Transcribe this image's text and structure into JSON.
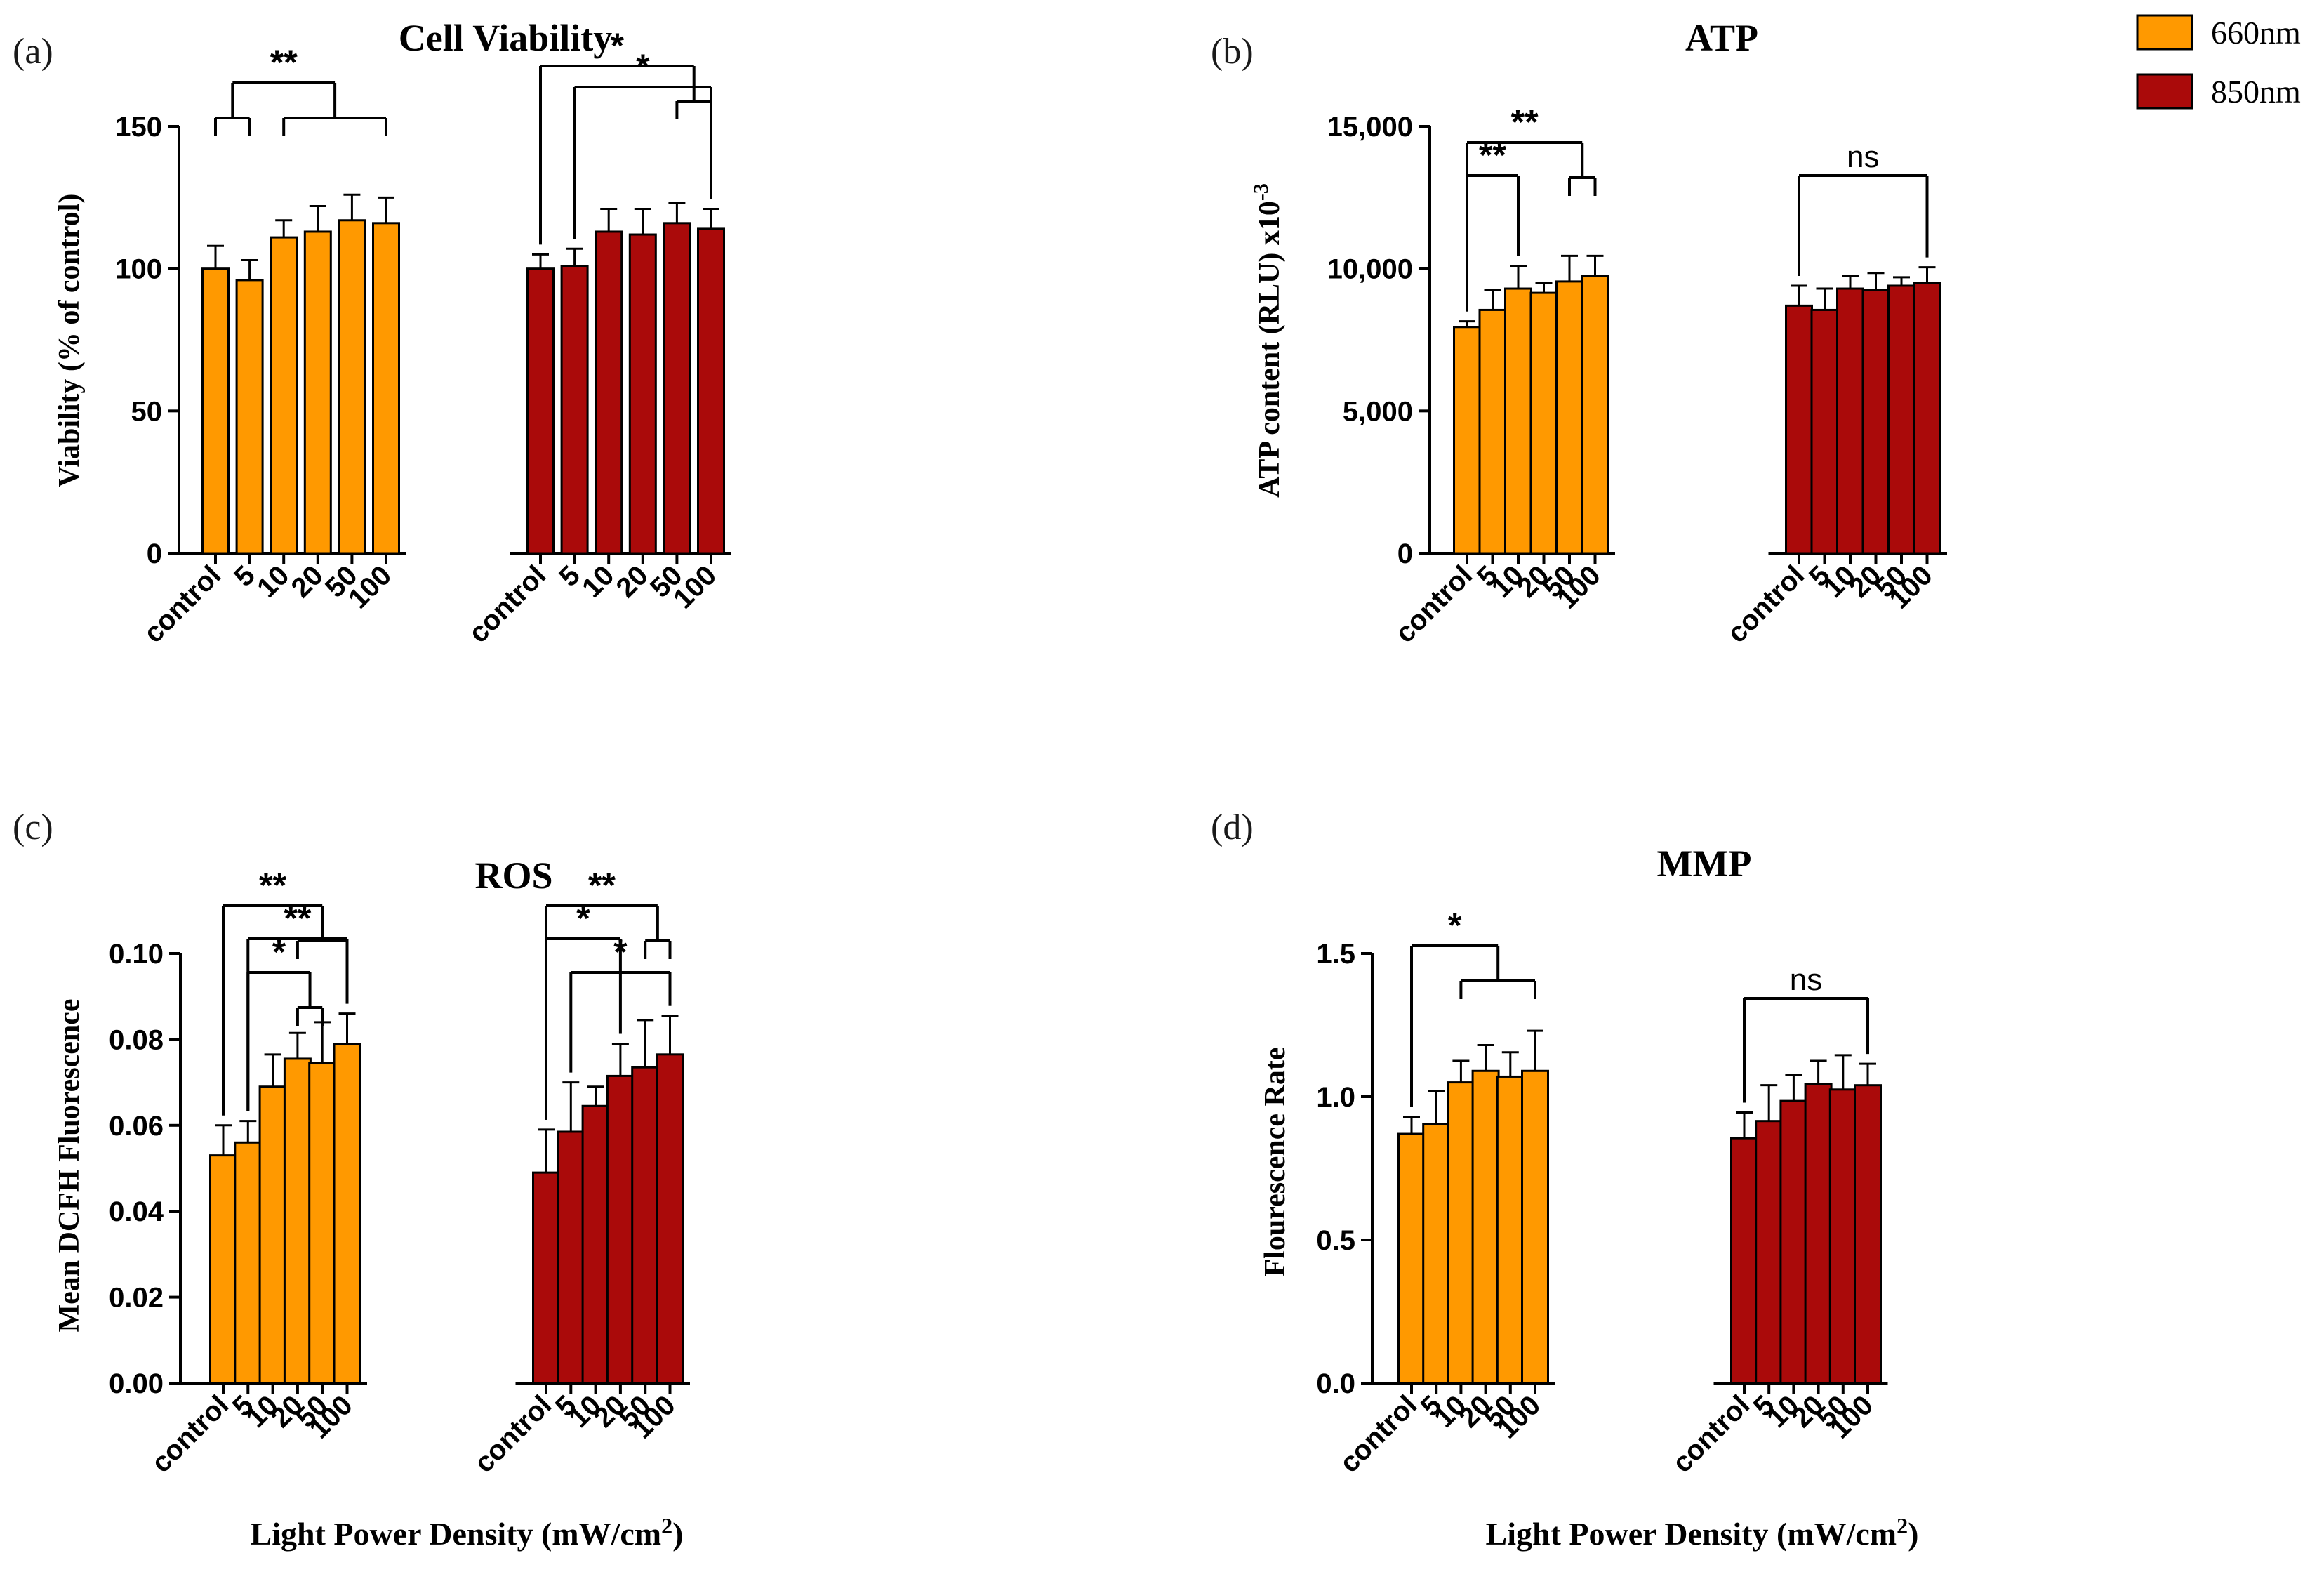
{
  "x_axis_label": "Light Power Density (mW/cm",
  "x_axis_label_sup": "2",
  "x_axis_label_end": ")",
  "legend": [
    {
      "label": "660nm",
      "color": "#FF9900"
    },
    {
      "label": "850nm",
      "color": "#AA0A0A"
    }
  ],
  "chart_data": [
    {
      "type": "bar",
      "panel": "(a)",
      "title": "Cell Viability",
      "ylabel": "Viability (% of control)",
      "ylim": [
        0,
        150
      ],
      "yticks": [
        0,
        50,
        100,
        150
      ],
      "ytick_labels": [
        "0",
        "50",
        "100",
        "150"
      ],
      "categories": [
        "control",
        "5",
        "10",
        "20",
        "50",
        "100"
      ],
      "series": [
        {
          "name": "660nm",
          "values": [
            100,
            96,
            111,
            113,
            117,
            116
          ],
          "errors": [
            8,
            7,
            6,
            9,
            9,
            9
          ]
        },
        {
          "name": "850nm",
          "values": [
            100,
            101,
            113,
            112,
            116,
            114
          ],
          "errors": [
            5,
            6,
            8,
            9,
            7,
            7
          ]
        }
      ],
      "annotations": [
        {
          "label": "**",
          "series": 0,
          "from": [
            0,
            1
          ],
          "to": [
            2,
            5
          ]
        },
        {
          "label": "*",
          "series": 1,
          "from": [
            0
          ],
          "to": [
            4,
            5
          ]
        },
        {
          "label": "*",
          "series": 1,
          "from": [
            1
          ],
          "to": [
            5
          ]
        }
      ]
    },
    {
      "type": "bar",
      "panel": "(b)",
      "title": "ATP",
      "ylabel": "ATP content (RLU) x10",
      "ylabel_sup": "-3",
      "ylim": [
        0,
        15000
      ],
      "yticks": [
        0,
        5000,
        10000,
        15000
      ],
      "ytick_labels": [
        "0",
        "5,000",
        "10,000",
        "15,000"
      ],
      "categories": [
        "control",
        "5",
        "10",
        "20",
        "50",
        "100"
      ],
      "series": [
        {
          "name": "660nm",
          "values": [
            7950,
            8550,
            9300,
            9150,
            9550,
            9750
          ],
          "errors": [
            200,
            700,
            800,
            350,
            900,
            700
          ]
        },
        {
          "name": "850nm",
          "values": [
            8700,
            8550,
            9300,
            9250,
            9400,
            9500
          ],
          "errors": [
            700,
            750,
            450,
            600,
            300,
            550
          ]
        }
      ],
      "annotations": [
        {
          "label": "**",
          "series": 0,
          "from": [
            0
          ],
          "to": [
            4,
            5
          ]
        },
        {
          "label": "**",
          "series": 0,
          "from": [
            0
          ],
          "to": [
            2
          ]
        },
        {
          "label": "ns",
          "series": 1,
          "from": [
            0
          ],
          "to": [
            5
          ]
        }
      ]
    },
    {
      "type": "bar",
      "panel": "(c)",
      "title": "ROS",
      "ylabel": "Mean DCFH Fluorescence",
      "ylim": [
        0,
        0.1
      ],
      "yticks": [
        0,
        0.02,
        0.04,
        0.06,
        0.08,
        0.1
      ],
      "ytick_labels": [
        "0.00",
        "0.02",
        "0.04",
        "0.06",
        "0.08",
        "0.10"
      ],
      "categories": [
        "control",
        "5",
        "10",
        "20",
        "50",
        "100"
      ],
      "series": [
        {
          "name": "660nm",
          "values": [
            0.053,
            0.056,
            0.069,
            0.0755,
            0.0745,
            0.079
          ],
          "errors": [
            0.007,
            0.005,
            0.0075,
            0.006,
            0.0095,
            0.007
          ]
        },
        {
          "name": "850nm",
          "values": [
            0.049,
            0.0585,
            0.0645,
            0.0715,
            0.0735,
            0.0765
          ],
          "errors": [
            0.01,
            0.0115,
            0.0045,
            0.0075,
            0.011,
            0.009
          ]
        }
      ],
      "annotations": [
        {
          "label": "**",
          "series": 0,
          "from": [
            0
          ],
          "to": [
            3,
            5
          ]
        },
        {
          "label": "**",
          "series": 0,
          "from": [
            1
          ],
          "to": [
            5
          ]
        },
        {
          "label": "*",
          "series": 0,
          "from": [
            1
          ],
          "to": [
            3,
            4
          ]
        },
        {
          "label": "**",
          "series": 1,
          "from": [
            0
          ],
          "to": [
            4,
            5
          ]
        },
        {
          "label": "*",
          "series": 1,
          "from": [
            0
          ],
          "to": [
            3
          ]
        },
        {
          "label": "*",
          "series": 1,
          "from": [
            1
          ],
          "to": [
            5
          ]
        }
      ]
    },
    {
      "type": "bar",
      "panel": "(d)",
      "title": "MMP",
      "ylabel": "Flourescence Rate",
      "ylim": [
        0,
        1.5
      ],
      "yticks": [
        0,
        0.5,
        1.0,
        1.5
      ],
      "ytick_labels": [
        "0.0",
        "0.5",
        "1.0",
        "1.5"
      ],
      "categories": [
        "control",
        "5",
        "10",
        "20",
        "50",
        "100"
      ],
      "series": [
        {
          "name": "660nm",
          "values": [
            0.87,
            0.905,
            1.05,
            1.09,
            1.07,
            1.09
          ],
          "errors": [
            0.06,
            0.115,
            0.075,
            0.09,
            0.085,
            0.14
          ]
        },
        {
          "name": "850nm",
          "values": [
            0.855,
            0.915,
            0.985,
            1.045,
            1.025,
            1.04
          ],
          "errors": [
            0.09,
            0.125,
            0.09,
            0.08,
            0.12,
            0.075
          ]
        }
      ],
      "annotations": [
        {
          "label": "*",
          "series": 0,
          "from": [
            0
          ],
          "to": [
            2,
            5
          ]
        },
        {
          "label": "ns",
          "series": 1,
          "from": [
            0
          ],
          "to": [
            5
          ]
        }
      ]
    }
  ]
}
